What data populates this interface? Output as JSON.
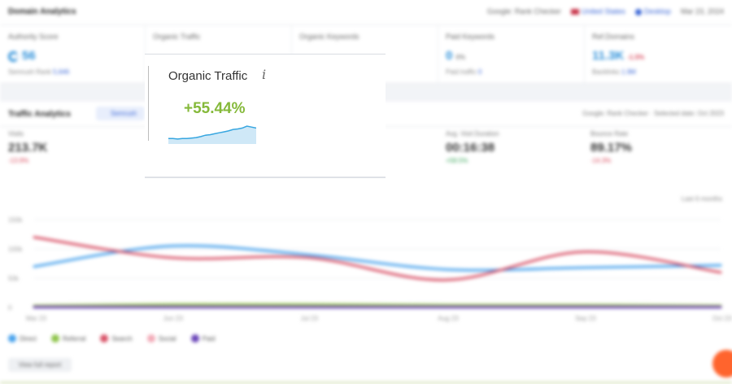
{
  "topbar": {
    "title": "Domain Analytics",
    "context_label": "Google: Rank Checker",
    "country": "United States",
    "device": "Desktop",
    "date": "Mar 23, 2024"
  },
  "kpis": [
    {
      "label": "Authority Score",
      "value": "56",
      "suffix": "/",
      "sub": "Semrush Rank",
      "sub_link": "5,646"
    },
    {
      "label": "Organic Traffic",
      "value": "",
      "sub": ""
    },
    {
      "label": "Organic Keywords",
      "value": "",
      "sub": ""
    },
    {
      "label": "Paid Keywords",
      "value": "0",
      "suffix": "0%",
      "sub": "Paid traffic",
      "sub_link": "0"
    },
    {
      "label": "Ref.Domains",
      "value": "11.3K",
      "change": "-1.5%",
      "sub": "Backlinks",
      "sub_link": "1.9M"
    }
  ],
  "traffic": {
    "title": "Traffic Analytics",
    "filter_chip": "Semrush",
    "context": "Google: Rank Checker · Selected date: Oct 2023",
    "stats": [
      {
        "label": "Visits",
        "value": "213.7K",
        "change": "-13.9%",
        "trend": "neg"
      },
      {
        "label": "Avg. Visit Duration",
        "value": "00:16:38",
        "change": "+58.5%",
        "trend": "pos"
      },
      {
        "label": "Bounce Rate",
        "value": "89.17%",
        "change": "-14.3%",
        "trend": "neg"
      }
    ],
    "period": "Last 6 months"
  },
  "chart_data": {
    "type": "line",
    "x": [
      "Mar 23",
      "Jun 23",
      "Jul 23",
      "Aug 23",
      "Sep 23",
      "Oct 23"
    ],
    "y_ticks": [
      "150k",
      "100k",
      "50k",
      "0"
    ],
    "ylim": [
      0,
      150000
    ],
    "series": [
      {
        "name": "Direct",
        "color": "#4aa3ec",
        "values": [
          70000,
          105000,
          90000,
          65000,
          68000,
          72000
        ]
      },
      {
        "name": "Referral",
        "color": "#8ec44a",
        "values": [
          3000,
          5000,
          5000,
          4000,
          4000,
          3000
        ]
      },
      {
        "name": "Search",
        "color": "#d95469",
        "values": [
          120000,
          85000,
          85000,
          47000,
          95000,
          60000
        ]
      },
      {
        "name": "Social",
        "color": "#f2aab7",
        "values": [
          1000,
          1000,
          1000,
          1000,
          1000,
          1000
        ]
      },
      {
        "name": "Paid",
        "color": "#6a45b8",
        "values": [
          500,
          500,
          500,
          500,
          500,
          500
        ]
      }
    ]
  },
  "report_button": "View full report",
  "card": {
    "title": "Organic Traffic",
    "info_icon": "i",
    "change": "+55.44%",
    "spark_color": "#37a6e0",
    "spark_values": [
      4,
      4,
      3.5,
      4,
      4,
      4.5,
      5,
      6,
      7.5,
      8,
      9,
      10,
      11,
      12,
      13.5,
      14,
      15,
      17,
      16,
      15
    ]
  }
}
